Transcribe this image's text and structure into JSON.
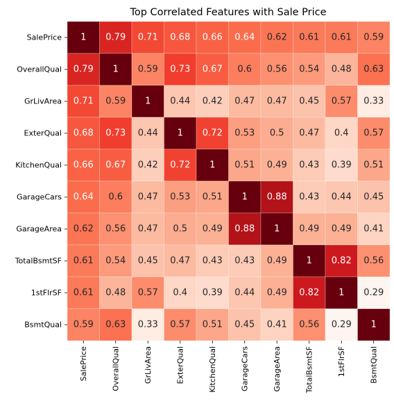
{
  "chart_data": {
    "type": "heatmap",
    "title": "Top Correlated Features with Sale Price",
    "colormap": "Reds",
    "vmin": 0.29,
    "vmax": 1,
    "annotations": true,
    "colorbar": false,
    "row_labels": [
      "SalePrice",
      "OverallQual",
      "GrLivArea",
      "ExterQual",
      "KitchenQual",
      "GarageCars",
      "GarageArea",
      "TotalBsmtSF",
      "1stFlrSF",
      "BsmtQual"
    ],
    "col_labels": [
      "SalePrice",
      "OverallQual",
      "GrLivArea",
      "ExterQual",
      "KitchenQual",
      "GarageCars",
      "GarageArea",
      "TotalBsmtSF",
      "1stFlrSF",
      "BsmtQual"
    ],
    "values": [
      [
        1,
        0.79,
        0.71,
        0.68,
        0.66,
        0.64,
        0.62,
        0.61,
        0.61,
        0.59
      ],
      [
        0.79,
        1,
        0.59,
        0.73,
        0.67,
        0.6,
        0.56,
        0.54,
        0.48,
        0.63
      ],
      [
        0.71,
        0.59,
        1,
        0.44,
        0.42,
        0.47,
        0.47,
        0.45,
        0.57,
        0.33
      ],
      [
        0.68,
        0.73,
        0.44,
        1,
        0.72,
        0.53,
        0.5,
        0.47,
        0.4,
        0.57
      ],
      [
        0.66,
        0.67,
        0.42,
        0.72,
        1,
        0.51,
        0.49,
        0.43,
        0.39,
        0.51
      ],
      [
        0.64,
        0.6,
        0.47,
        0.53,
        0.51,
        1,
        0.88,
        0.43,
        0.44,
        0.45
      ],
      [
        0.62,
        0.56,
        0.47,
        0.5,
        0.49,
        0.88,
        1,
        0.49,
        0.49,
        0.41
      ],
      [
        0.61,
        0.54,
        0.45,
        0.47,
        0.43,
        0.43,
        0.49,
        1,
        0.82,
        0.56
      ],
      [
        0.61,
        0.48,
        0.57,
        0.4,
        0.39,
        0.44,
        0.49,
        0.82,
        1,
        0.29
      ],
      [
        0.59,
        0.63,
        0.33,
        0.57,
        0.51,
        0.45,
        0.41,
        0.56,
        0.29,
        1
      ]
    ]
  }
}
